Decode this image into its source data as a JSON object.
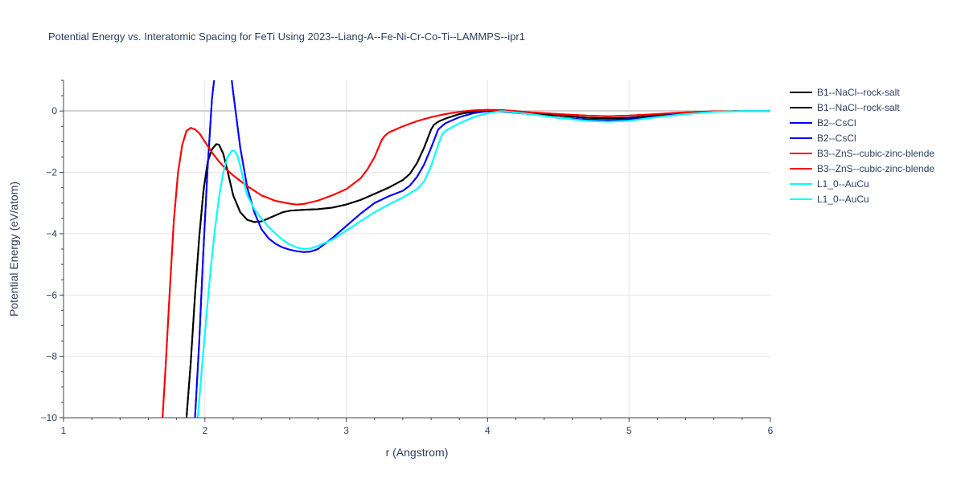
{
  "chart_data": {
    "type": "line",
    "title": "Potential Energy vs. Interatomic Spacing for FeTi Using 2023--Liang-A--Fe-Ni-Cr-Co-Ti--LAMMPS--ipr1",
    "xlabel": "r (Angstrom)",
    "ylabel": "Potential Energy (eV/atom)",
    "xlim": [
      1,
      6
    ],
    "ylim": [
      -10,
      1
    ],
    "xticks": [
      1,
      2,
      3,
      4,
      5,
      6
    ],
    "yticks": [
      -10,
      -8,
      -6,
      -4,
      -2,
      0
    ],
    "x_tick_labels": [
      "1",
      "2",
      "3",
      "4",
      "5",
      "6"
    ],
    "y_tick_labels": [
      "−10",
      "−8",
      "−6",
      "−4",
      "−2",
      "0"
    ],
    "grid": true,
    "legend_position": "right",
    "series": [
      {
        "name": "B1--NaCl--rock-salt",
        "color": "#000000",
        "x": [
          1.87,
          1.9,
          1.93,
          1.96,
          1.99,
          2.02,
          2.05,
          2.08,
          2.1,
          2.13,
          2.16,
          2.2,
          2.25,
          2.3,
          2.35,
          2.4,
          2.45,
          2.5,
          2.55,
          2.6,
          2.7,
          2.8,
          2.9,
          3.0,
          3.1,
          3.2,
          3.3,
          3.4,
          3.45,
          3.5,
          3.55,
          3.6,
          3.62,
          3.65,
          3.7,
          3.8,
          3.9,
          4.0,
          4.1,
          4.3,
          4.5,
          4.7,
          4.85,
          5.0,
          5.2,
          5.4,
          5.6,
          5.8,
          6.0
        ],
        "y": [
          -10.0,
          -8.2,
          -6.0,
          -4.1,
          -2.6,
          -1.65,
          -1.25,
          -1.08,
          -1.1,
          -1.4,
          -1.95,
          -2.75,
          -3.3,
          -3.55,
          -3.62,
          -3.6,
          -3.5,
          -3.4,
          -3.3,
          -3.25,
          -3.22,
          -3.2,
          -3.15,
          -3.05,
          -2.9,
          -2.7,
          -2.5,
          -2.25,
          -2.05,
          -1.7,
          -1.2,
          -0.6,
          -0.45,
          -0.35,
          -0.25,
          -0.1,
          -0.02,
          0.0,
          0.0,
          -0.08,
          -0.15,
          -0.22,
          -0.24,
          -0.22,
          -0.15,
          -0.07,
          -0.02,
          0.0,
          0.0
        ]
      },
      {
        "name": "B1--NaCl--rock-salt",
        "color": "#000000",
        "x": [
          1.87,
          1.9,
          1.93,
          1.96,
          1.99,
          2.02,
          2.05,
          2.08,
          2.1,
          2.13,
          2.16,
          2.2,
          2.25,
          2.3,
          2.35,
          2.4,
          2.45,
          2.5,
          2.55,
          2.6,
          2.7,
          2.8,
          2.9,
          3.0,
          3.1,
          3.2,
          3.3,
          3.4,
          3.45,
          3.5,
          3.55,
          3.6,
          3.62,
          3.65,
          3.7,
          3.8,
          3.9,
          4.0,
          4.1,
          4.3,
          4.5,
          4.7,
          4.85,
          5.0,
          5.2,
          5.4,
          5.6,
          5.8,
          6.0
        ],
        "y": [
          -10.0,
          -8.2,
          -6.0,
          -4.1,
          -2.6,
          -1.65,
          -1.25,
          -1.08,
          -1.1,
          -1.4,
          -1.95,
          -2.75,
          -3.3,
          -3.55,
          -3.62,
          -3.6,
          -3.5,
          -3.4,
          -3.3,
          -3.25,
          -3.22,
          -3.2,
          -3.15,
          -3.05,
          -2.9,
          -2.7,
          -2.5,
          -2.25,
          -2.05,
          -1.7,
          -1.2,
          -0.6,
          -0.45,
          -0.35,
          -0.25,
          -0.1,
          -0.02,
          0.0,
          0.0,
          -0.08,
          -0.15,
          -0.22,
          -0.24,
          -0.22,
          -0.15,
          -0.07,
          -0.02,
          0.0,
          0.0
        ]
      },
      {
        "name": "B2--CsCl",
        "color": "#0000ff",
        "x": [
          1.93,
          1.96,
          1.99,
          2.02,
          2.05,
          2.07,
          2.08,
          2.1,
          2.15,
          2.18,
          2.2,
          2.25,
          2.3,
          2.35,
          2.4,
          2.45,
          2.5,
          2.55,
          2.6,
          2.65,
          2.7,
          2.75,
          2.8,
          2.9,
          3.0,
          3.1,
          3.2,
          3.3,
          3.4,
          3.45,
          3.5,
          3.55,
          3.6,
          3.65,
          3.7,
          3.8,
          3.9,
          4.0,
          4.1,
          4.3,
          4.5,
          4.7,
          4.85,
          5.0,
          5.2,
          5.4,
          5.6,
          5.8,
          6.0
        ],
        "y": [
          -10.0,
          -7.5,
          -4.5,
          -1.8,
          0.4,
          1.2,
          1.5,
          1.8,
          1.9,
          1.4,
          0.6,
          -1.2,
          -2.5,
          -3.3,
          -3.85,
          -4.15,
          -4.33,
          -4.45,
          -4.52,
          -4.57,
          -4.6,
          -4.58,
          -4.5,
          -4.15,
          -3.75,
          -3.35,
          -3.0,
          -2.78,
          -2.6,
          -2.43,
          -2.15,
          -1.75,
          -1.2,
          -0.6,
          -0.4,
          -0.2,
          -0.07,
          0.0,
          -0.02,
          -0.1,
          -0.22,
          -0.28,
          -0.3,
          -0.27,
          -0.18,
          -0.08,
          -0.02,
          0.0,
          0.0
        ]
      },
      {
        "name": "B2--CsCl",
        "color": "#0000ff",
        "x": [
          1.93,
          1.96,
          1.99,
          2.02,
          2.05,
          2.07,
          2.08,
          2.1,
          2.15,
          2.18,
          2.2,
          2.25,
          2.3,
          2.35,
          2.4,
          2.45,
          2.5,
          2.55,
          2.6,
          2.65,
          2.7,
          2.75,
          2.8,
          2.9,
          3.0,
          3.1,
          3.2,
          3.3,
          3.4,
          3.45,
          3.5,
          3.55,
          3.6,
          3.65,
          3.7,
          3.8,
          3.9,
          4.0,
          4.1,
          4.3,
          4.5,
          4.7,
          4.85,
          5.0,
          5.2,
          5.4,
          5.6,
          5.8,
          6.0
        ],
        "y": [
          -10.0,
          -7.5,
          -4.5,
          -1.8,
          0.4,
          1.2,
          1.5,
          1.8,
          1.9,
          1.4,
          0.6,
          -1.2,
          -2.5,
          -3.3,
          -3.85,
          -4.15,
          -4.33,
          -4.45,
          -4.52,
          -4.57,
          -4.6,
          -4.58,
          -4.5,
          -4.15,
          -3.75,
          -3.35,
          -3.0,
          -2.78,
          -2.6,
          -2.43,
          -2.15,
          -1.75,
          -1.2,
          -0.6,
          -0.4,
          -0.2,
          -0.07,
          0.0,
          -0.02,
          -0.1,
          -0.22,
          -0.28,
          -0.3,
          -0.27,
          -0.18,
          -0.08,
          -0.02,
          0.0,
          0.0
        ]
      },
      {
        "name": "B3--ZnS--cubic-zinc-blende",
        "color": "#ff0000",
        "x": [
          1.7,
          1.72,
          1.75,
          1.78,
          1.81,
          1.84,
          1.87,
          1.9,
          1.93,
          1.96,
          2.0,
          2.05,
          2.1,
          2.15,
          2.2,
          2.3,
          2.4,
          2.5,
          2.6,
          2.65,
          2.7,
          2.8,
          2.9,
          3.0,
          3.1,
          3.15,
          3.2,
          3.25,
          3.27,
          3.3,
          3.4,
          3.5,
          3.6,
          3.7,
          3.8,
          3.9,
          4.0,
          4.1,
          4.3,
          4.5,
          4.7,
          4.85,
          5.0,
          5.2,
          5.4,
          5.6,
          5.8,
          6.0
        ],
        "y": [
          -10.0,
          -8.5,
          -6.0,
          -3.6,
          -2.0,
          -1.1,
          -0.65,
          -0.55,
          -0.6,
          -0.72,
          -1.0,
          -1.35,
          -1.65,
          -1.9,
          -2.1,
          -2.45,
          -2.75,
          -2.93,
          -3.02,
          -3.05,
          -3.03,
          -2.92,
          -2.75,
          -2.55,
          -2.2,
          -1.9,
          -1.5,
          -0.95,
          -0.82,
          -0.7,
          -0.5,
          -0.33,
          -0.2,
          -0.1,
          -0.03,
          0.02,
          0.04,
          0.03,
          -0.04,
          -0.1,
          -0.15,
          -0.17,
          -0.15,
          -0.1,
          -0.04,
          -0.01,
          0.0,
          0.0
        ]
      },
      {
        "name": "B3--ZnS--cubic-zinc-blende",
        "color": "#ff0000",
        "x": [
          1.7,
          1.72,
          1.75,
          1.78,
          1.81,
          1.84,
          1.87,
          1.9,
          1.93,
          1.96,
          2.0,
          2.05,
          2.1,
          2.15,
          2.2,
          2.3,
          2.4,
          2.5,
          2.6,
          2.65,
          2.7,
          2.8,
          2.9,
          3.0,
          3.1,
          3.15,
          3.2,
          3.25,
          3.27,
          3.3,
          3.4,
          3.5,
          3.6,
          3.7,
          3.8,
          3.9,
          4.0,
          4.1,
          4.3,
          4.5,
          4.7,
          4.85,
          5.0,
          5.2,
          5.4,
          5.6,
          5.8,
          6.0
        ],
        "y": [
          -10.0,
          -8.5,
          -6.0,
          -3.6,
          -2.0,
          -1.1,
          -0.65,
          -0.55,
          -0.6,
          -0.72,
          -1.0,
          -1.35,
          -1.65,
          -1.9,
          -2.1,
          -2.45,
          -2.75,
          -2.93,
          -3.02,
          -3.05,
          -3.03,
          -2.92,
          -2.75,
          -2.55,
          -2.2,
          -1.9,
          -1.5,
          -0.95,
          -0.82,
          -0.7,
          -0.5,
          -0.33,
          -0.2,
          -0.1,
          -0.03,
          0.02,
          0.04,
          0.03,
          -0.04,
          -0.1,
          -0.15,
          -0.17,
          -0.15,
          -0.1,
          -0.04,
          -0.01,
          0.0,
          0.0
        ]
      },
      {
        "name": "L1_0--AuCu",
        "color": "#00ffff",
        "x": [
          1.95,
          1.98,
          2.01,
          2.04,
          2.07,
          2.1,
          2.13,
          2.16,
          2.19,
          2.21,
          2.23,
          2.25,
          2.28,
          2.3,
          2.35,
          2.4,
          2.45,
          2.5,
          2.55,
          2.6,
          2.65,
          2.7,
          2.75,
          2.8,
          2.9,
          3.0,
          3.1,
          3.2,
          3.3,
          3.4,
          3.5,
          3.55,
          3.6,
          3.65,
          3.68,
          3.7,
          3.8,
          3.9,
          4.0,
          4.1,
          4.3,
          4.5,
          4.7,
          4.85,
          5.0,
          5.2,
          5.4,
          5.6,
          5.8,
          6.0
        ],
        "y": [
          -10.0,
          -8.3,
          -6.7,
          -5.2,
          -3.9,
          -2.8,
          -2.0,
          -1.5,
          -1.3,
          -1.3,
          -1.45,
          -1.8,
          -2.4,
          -2.75,
          -3.2,
          -3.5,
          -3.78,
          -4.0,
          -4.2,
          -4.35,
          -4.45,
          -4.5,
          -4.48,
          -4.4,
          -4.2,
          -3.9,
          -3.6,
          -3.3,
          -3.05,
          -2.82,
          -2.55,
          -2.3,
          -1.8,
          -1.1,
          -0.75,
          -0.65,
          -0.4,
          -0.2,
          -0.07,
          0.0,
          -0.1,
          -0.22,
          -0.32,
          -0.35,
          -0.32,
          -0.2,
          -0.1,
          -0.03,
          0.0,
          0.0
        ]
      },
      {
        "name": "L1_0--AuCu",
        "color": "#00ffff",
        "x": [
          1.95,
          1.98,
          2.01,
          2.04,
          2.07,
          2.1,
          2.13,
          2.16,
          2.19,
          2.21,
          2.23,
          2.25,
          2.28,
          2.3,
          2.35,
          2.4,
          2.45,
          2.5,
          2.55,
          2.6,
          2.65,
          2.7,
          2.75,
          2.8,
          2.9,
          3.0,
          3.1,
          3.2,
          3.3,
          3.4,
          3.5,
          3.55,
          3.6,
          3.65,
          3.68,
          3.7,
          3.8,
          3.9,
          4.0,
          4.1,
          4.3,
          4.5,
          4.7,
          4.85,
          5.0,
          5.2,
          5.4,
          5.6,
          5.8,
          6.0
        ],
        "y": [
          -10.0,
          -8.3,
          -6.7,
          -5.2,
          -3.9,
          -2.8,
          -2.0,
          -1.5,
          -1.3,
          -1.3,
          -1.45,
          -1.8,
          -2.4,
          -2.75,
          -3.2,
          -3.5,
          -3.78,
          -4.0,
          -4.2,
          -4.35,
          -4.45,
          -4.5,
          -4.48,
          -4.4,
          -4.2,
          -3.9,
          -3.6,
          -3.3,
          -3.05,
          -2.82,
          -2.55,
          -2.3,
          -1.8,
          -1.1,
          -0.75,
          -0.65,
          -0.4,
          -0.2,
          -0.07,
          0.0,
          -0.1,
          -0.22,
          -0.32,
          -0.35,
          -0.32,
          -0.2,
          -0.1,
          -0.03,
          0.0,
          0.0
        ]
      }
    ]
  },
  "colors": {
    "background": "#ffffff",
    "grid": "#e5e5e5",
    "zero_line": "#d0d0d0",
    "axis_line": "#444444",
    "text": "#2a3f5f"
  }
}
